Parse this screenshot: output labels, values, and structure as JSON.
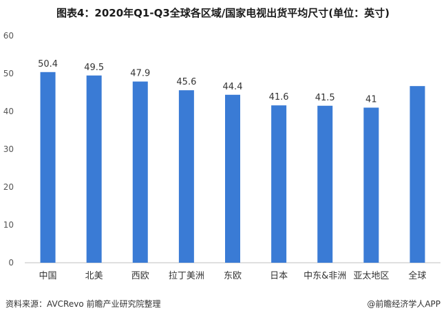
{
  "title": "图表4：2020年Q1-Q3全球各区域/国家电视出货平均尺寸(单位：英寸)",
  "source": "资料来源：AVCRevo 前瞻产业研究院整理",
  "brand": "@前瞻经济学人APP",
  "colors": {
    "bar": "#3a7bd5",
    "axis": "#bfbfbf"
  },
  "chart_data": {
    "type": "bar",
    "title": "图表4：2020年Q1-Q3全球各区域/国家电视出货平均尺寸(单位：英寸)",
    "categories": [
      "中国",
      "北美",
      "西欧",
      "拉丁美洲",
      "东欧",
      "日本",
      "中东&非洲",
      "亚太地区",
      "全球"
    ],
    "values": [
      50.4,
      49.5,
      47.9,
      45.6,
      44.4,
      41.6,
      41.5,
      41,
      46.7
    ],
    "data_labels": [
      "50.4",
      "49.5",
      "47.9",
      "45.6",
      "44.4",
      "41.6",
      "41.5",
      "41",
      ""
    ],
    "ylim": [
      0,
      60
    ],
    "yticks": [
      0,
      10,
      20,
      30,
      40,
      50,
      60
    ],
    "grid": false,
    "legend": "none"
  }
}
